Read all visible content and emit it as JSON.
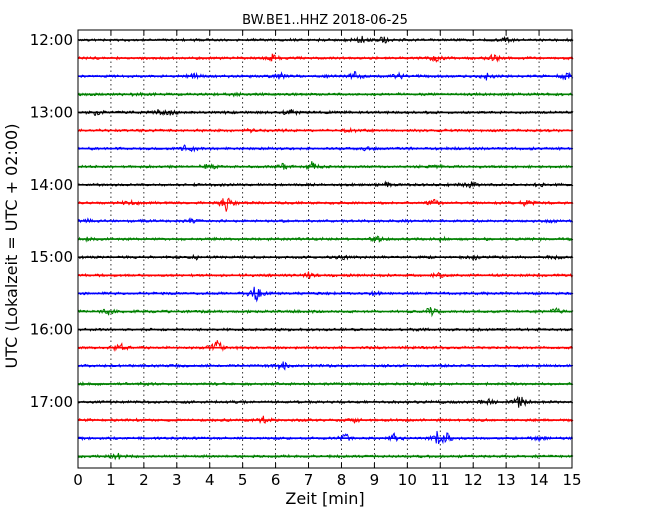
{
  "chart_data": {
    "type": "line",
    "title": "BW.BE1..HHZ 2018-06-25",
    "xlabel": "Zeit  [min]",
    "ylabel": "UTC (Lokalzeit = UTC + 02:00)",
    "xlim": [
      0,
      15
    ],
    "xticks": [
      "0",
      "1",
      "2",
      "3",
      "4",
      "5",
      "6",
      "7",
      "8",
      "9",
      "10",
      "11",
      "12",
      "13",
      "14",
      "15"
    ],
    "ytick_labels": [
      "12:00",
      "13:00",
      "14:00",
      "15:00",
      "16:00",
      "17:00"
    ],
    "grid": "vertical dotted",
    "colors": [
      "#000000",
      "#ff0000",
      "#0000ff",
      "#008000"
    ],
    "series": [
      {
        "start": "12:00",
        "color": "#000000",
        "events": [
          [
            8.6,
            0.35
          ],
          [
            9.3,
            0.35
          ],
          [
            13.0,
            0.2
          ]
        ]
      },
      {
        "start": "12:15",
        "color": "#ff0000",
        "events": [
          [
            5.9,
            0.3
          ],
          [
            10.8,
            0.35
          ],
          [
            12.6,
            0.3
          ]
        ]
      },
      {
        "start": "12:30",
        "color": "#0000ff",
        "events": [
          [
            3.5,
            0.25
          ],
          [
            6.1,
            0.3
          ],
          [
            8.4,
            0.35
          ],
          [
            9.7,
            0.35
          ],
          [
            12.4,
            0.3
          ],
          [
            14.8,
            0.3
          ]
        ]
      },
      {
        "start": "12:45",
        "color": "#008000",
        "events": [
          [
            1.7,
            0.15
          ],
          [
            4.8,
            0.12
          ]
        ]
      },
      {
        "start": "13:00",
        "color": "#000000",
        "events": [
          [
            0.5,
            0.25
          ],
          [
            2.4,
            0.25
          ],
          [
            2.8,
            0.3
          ],
          [
            6.4,
            0.3
          ]
        ]
      },
      {
        "start": "13:15",
        "color": "#ff0000",
        "events": [
          [
            5.2,
            0.15
          ],
          [
            8.2,
            0.2
          ]
        ]
      },
      {
        "start": "13:30",
        "color": "#0000ff",
        "events": [
          [
            3.3,
            0.5
          ],
          [
            8.7,
            0.15
          ]
        ]
      },
      {
        "start": "13:45",
        "color": "#008000",
        "events": [
          [
            4.0,
            0.4
          ],
          [
            6.2,
            0.25
          ],
          [
            7.1,
            0.45
          ],
          [
            11.0,
            0.25
          ]
        ]
      },
      {
        "start": "14:00",
        "color": "#000000",
        "events": [
          [
            9.3,
            0.25
          ],
          [
            11.9,
            0.3
          ],
          [
            14.0,
            0.2
          ]
        ]
      },
      {
        "start": "14:15",
        "color": "#ff0000",
        "events": [
          [
            1.6,
            0.2
          ],
          [
            4.5,
            0.75
          ],
          [
            10.8,
            0.25
          ],
          [
            13.6,
            0.25
          ]
        ]
      },
      {
        "start": "14:30",
        "color": "#0000ff",
        "events": [
          [
            0.3,
            0.2
          ],
          [
            3.4,
            0.15
          ],
          [
            14.4,
            0.15
          ]
        ]
      },
      {
        "start": "14:45",
        "color": "#008000",
        "events": [
          [
            0.3,
            0.2
          ],
          [
            9.1,
            0.3
          ],
          [
            11.0,
            0.15
          ]
        ]
      },
      {
        "start": "15:00",
        "color": "#000000",
        "events": [
          [
            3.6,
            0.2
          ],
          [
            8.0,
            0.2
          ],
          [
            12.0,
            0.2
          ],
          [
            14.5,
            0.15
          ]
        ]
      },
      {
        "start": "15:15",
        "color": "#ff0000",
        "events": [
          [
            7.0,
            0.25
          ],
          [
            10.9,
            0.25
          ]
        ]
      },
      {
        "start": "15:30",
        "color": "#0000ff",
        "events": [
          [
            5.4,
            0.8
          ],
          [
            9.0,
            0.2
          ]
        ]
      },
      {
        "start": "15:45",
        "color": "#008000",
        "events": [
          [
            0.9,
            0.35
          ],
          [
            10.7,
            0.4
          ],
          [
            14.5,
            0.25
          ]
        ]
      },
      {
        "start": "16:00",
        "color": "#000000",
        "events": []
      },
      {
        "start": "16:15",
        "color": "#ff0000",
        "events": [
          [
            1.3,
            0.35
          ],
          [
            4.2,
            0.7
          ]
        ]
      },
      {
        "start": "16:30",
        "color": "#0000ff",
        "events": [
          [
            6.2,
            0.35
          ]
        ]
      },
      {
        "start": "16:45",
        "color": "#008000",
        "events": [
          [
            2.1,
            0.1
          ],
          [
            10.5,
            0.15
          ]
        ]
      },
      {
        "start": "17:00",
        "color": "#000000",
        "events": [
          [
            12.4,
            0.45
          ],
          [
            13.4,
            0.65
          ]
        ]
      },
      {
        "start": "17:15",
        "color": "#ff0000",
        "events": [
          [
            5.6,
            0.3
          ],
          [
            8.4,
            0.15
          ]
        ]
      },
      {
        "start": "17:30",
        "color": "#0000ff",
        "events": [
          [
            8.1,
            0.35
          ],
          [
            9.6,
            0.4
          ],
          [
            10.9,
            0.55
          ],
          [
            11.2,
            0.4
          ],
          [
            14.0,
            0.3
          ]
        ]
      },
      {
        "start": "17:45",
        "color": "#008000",
        "events": [
          [
            1.2,
            0.25
          ]
        ]
      }
    ]
  }
}
